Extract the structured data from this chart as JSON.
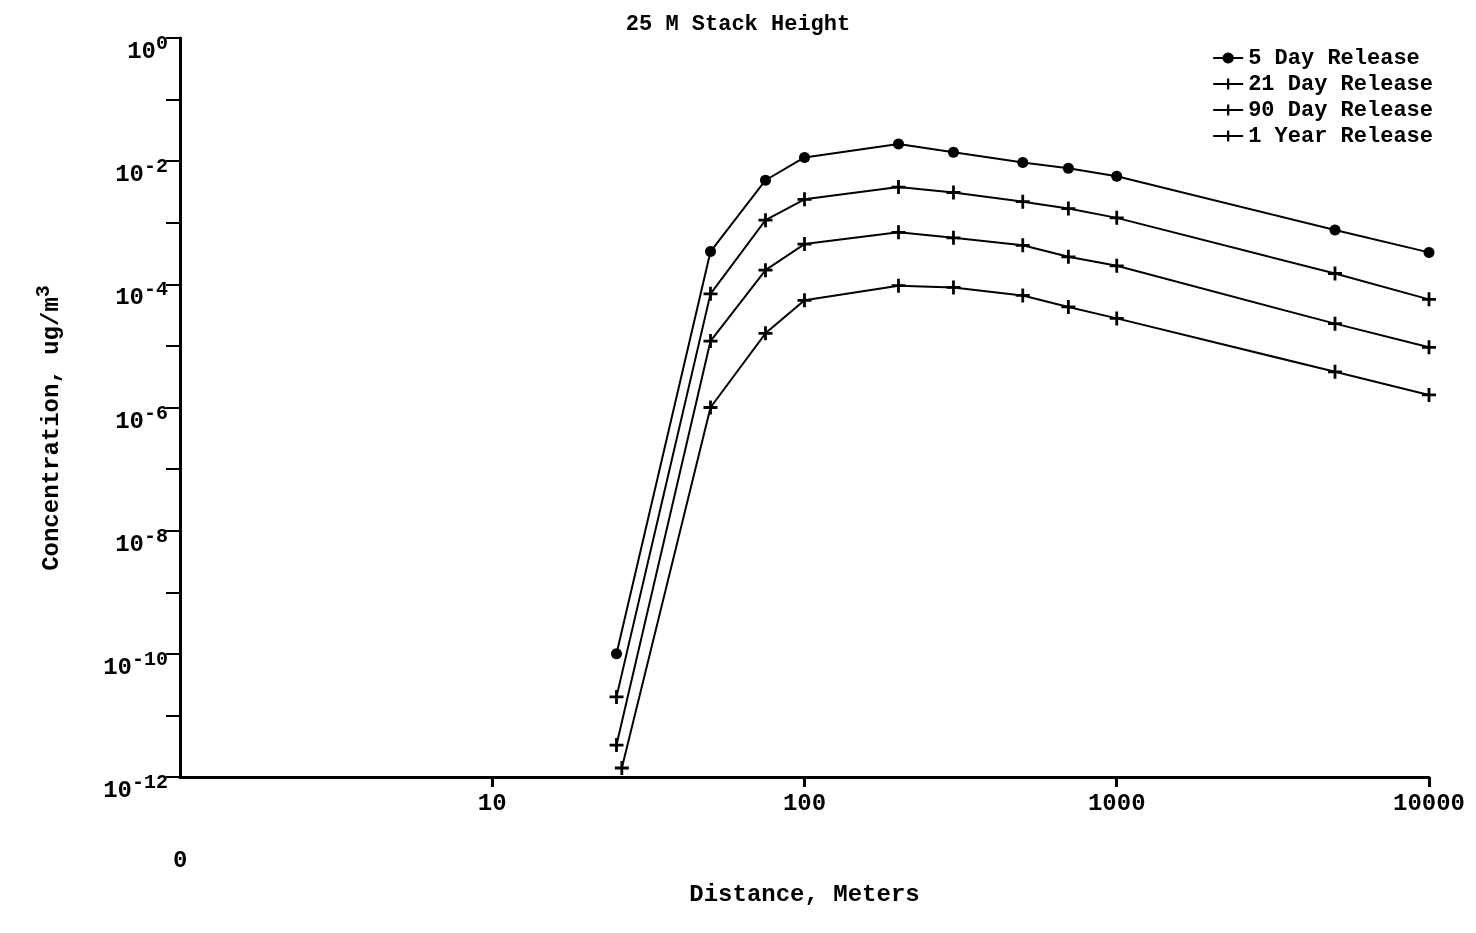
{
  "chart_data": {
    "type": "line",
    "title": "25 M Stack Height",
    "xlabel": "Distance, Meters",
    "ylabel": "Concentration, ug/m$^{3}$",
    "log": "xy",
    "grid": false,
    "legend": "top right",
    "line_style": "solid",
    "annotations": [
      "0"
    ],
    "xlim": [
      1,
      10000
    ],
    "xticks": [
      10,
      100,
      1000,
      10000
    ],
    "ylim": [
      1e-12,
      1
    ],
    "yticks": [
      {
        "value": 1e-12,
        "label": "10$^{-12}$"
      },
      {
        "value": 1e-11,
        "label": null
      },
      {
        "value": 1e-10,
        "label": "10$^{-10}$"
      },
      {
        "value": 1e-09,
        "label": null
      },
      {
        "value": 1e-08,
        "label": "10$^{-8}$"
      },
      {
        "value": 1e-07,
        "label": null
      },
      {
        "value": 1e-06,
        "label": "10$^{-6}$"
      },
      {
        "value": 1e-05,
        "label": null
      },
      {
        "value": 0.0001,
        "label": "10$^{-4}$"
      },
      {
        "value": 0.001,
        "label": null
      },
      {
        "value": 0.01,
        "label": "10$^{-2}$"
      },
      {
        "value": 0.1,
        "label": null
      },
      {
        "value": 1,
        "label": "10$^{0}$"
      }
    ],
    "x": [
      25,
      50,
      75,
      100,
      200,
      300,
      500,
      700,
      1000,
      5000,
      10000
    ],
    "series": [
      {
        "name": "5 Day Release",
        "color": "#000000",
        "marker": "circle",
        "values": [
          1e-10,
          0.00034,
          0.0049,
          0.0115,
          0.019,
          0.014,
          0.0095,
          0.0077,
          0.0057,
          0.00076,
          0.00033
        ]
      },
      {
        "name": "21 Day Release",
        "color": "#000000",
        "marker": "cross",
        "values": [
          2e-11,
          7e-05,
          0.0011,
          0.0024,
          0.0038,
          0.0031,
          0.0022,
          0.0017,
          0.0012,
          0.00015,
          5.7e-05
        ]
      },
      {
        "name": "90 Day Release",
        "color": "#000000",
        "marker": "cross",
        "values": [
          3.3e-12,
          1.2e-05,
          0.00017,
          0.00045,
          0.0007,
          0.00057,
          0.00043,
          0.00028,
          0.0002,
          2.3e-05,
          9.5e-06
        ]
      },
      {
        "name": "1 Year Release",
        "color": "#000000",
        "marker": "cross",
        "x": [
          26,
          50,
          75,
          100,
          200,
          300,
          500,
          700,
          1000,
          5000,
          10000
        ],
        "values": [
          1.4e-12,
          1e-06,
          1.6e-05,
          5.5e-05,
          9.5e-05,
          8.9e-05,
          6.6e-05,
          4.3e-05,
          2.8e-05,
          3.8e-06,
          1.6e-06
        ]
      }
    ]
  }
}
